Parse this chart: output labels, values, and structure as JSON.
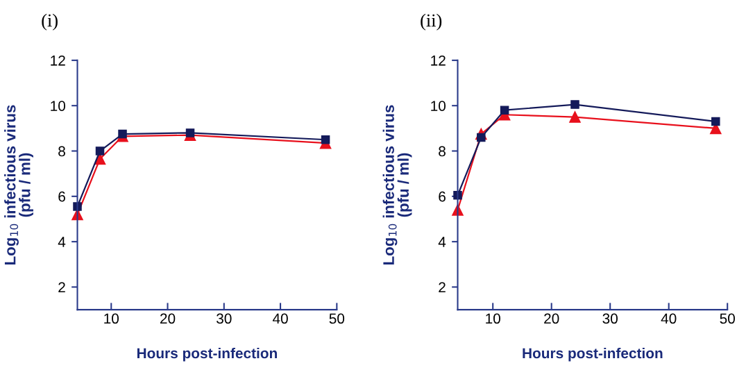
{
  "chart_data": [
    {
      "type": "line",
      "title": "(i)",
      "xlabel": "Hours post-infection",
      "ylabel": "Log$_{10}$ infectious virus\n(pfu / ml)",
      "x": [
        4,
        8,
        12,
        24,
        48
      ],
      "xlim": [
        4,
        50
      ],
      "xticks": [
        10,
        20,
        30,
        40,
        50
      ],
      "ylim": [
        1,
        12
      ],
      "yticks": [
        2,
        4,
        6,
        8,
        10,
        12
      ],
      "grid": false,
      "legend": false,
      "series": [
        {
          "color": "#e8101c",
          "marker": "triangle",
          "values": [
            5.2,
            7.65,
            8.65,
            8.7,
            8.35
          ]
        },
        {
          "color": "#141a5a",
          "marker": "square",
          "values": [
            5.55,
            8.0,
            8.75,
            8.8,
            8.5
          ]
        }
      ]
    },
    {
      "type": "line",
      "title": "(ii)",
      "xlabel": "Hours post-infection",
      "ylabel": "Log$_{10}$ infectious virus\n(pfu / ml)",
      "x": [
        4,
        8,
        12,
        24,
        48
      ],
      "xlim": [
        4,
        50
      ],
      "xticks": [
        10,
        20,
        30,
        40,
        50
      ],
      "ylim": [
        1,
        12
      ],
      "yticks": [
        2,
        4,
        6,
        8,
        10,
        12
      ],
      "grid": false,
      "legend": false,
      "series": [
        {
          "color": "#e8101c",
          "marker": "triangle",
          "values": [
            5.4,
            8.75,
            9.6,
            9.5,
            9.0
          ]
        },
        {
          "color": "#141a5a",
          "marker": "square",
          "values": [
            6.05,
            8.6,
            9.8,
            10.05,
            9.3
          ]
        }
      ]
    }
  ]
}
